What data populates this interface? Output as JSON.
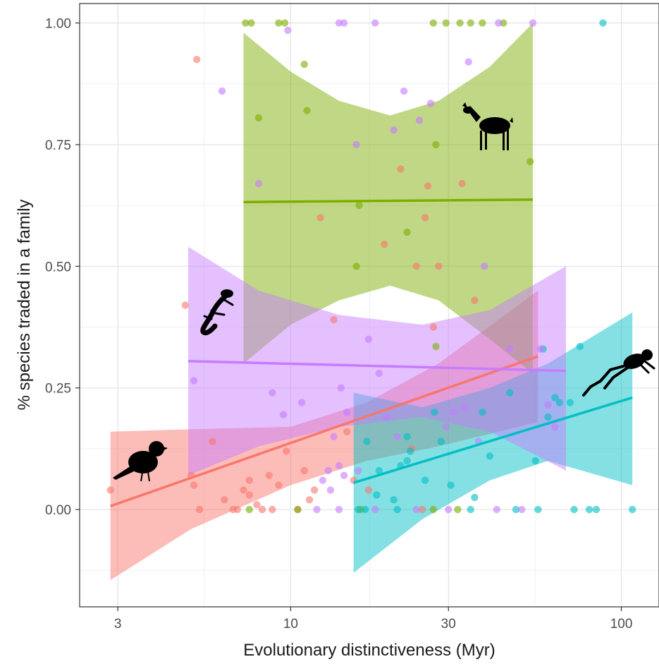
{
  "chart_data": {
    "type": "scatter",
    "title": "",
    "xlabel": "Evolutionary distinctiveness (Myr)",
    "ylabel": "% species traded in a family",
    "x_scale": "log10",
    "xlim": [
      2.3,
      130
    ],
    "ylim": [
      -0.2,
      1.04
    ],
    "x_ticks": [
      3,
      10,
      30,
      100
    ],
    "x_tick_labels": [
      "3",
      "10",
      "30",
      "100"
    ],
    "y_ticks": [
      0.0,
      0.25,
      0.5,
      0.75,
      1.0
    ],
    "y_tick_labels": [
      "0.00",
      "0.25",
      "0.50",
      "0.75",
      "1.00"
    ],
    "grid": true,
    "legend": "none",
    "series": [
      {
        "color": "#F8766D",
        "icon": "bird-silhouette-icon",
        "fit": {
          "x": [
            2.85,
            56
          ],
          "y": [
            0.007,
            0.315
          ]
        },
        "ribbon": {
          "x": [
            2.85,
            5,
            10,
            17,
            28,
            56
          ],
          "lower": [
            -0.145,
            -0.04,
            0.05,
            0.1,
            0.13,
            0.18
          ],
          "upper": [
            0.16,
            0.165,
            0.17,
            0.22,
            0.3,
            0.45
          ]
        },
        "points": [
          [
            2.85,
            0.04
          ],
          [
            4.8,
            0.42
          ],
          [
            5.2,
            0.925
          ],
          [
            5.8,
            0.14
          ],
          [
            5.0,
            0.07
          ],
          [
            5.1,
            0.05
          ],
          [
            5.3,
            0.0
          ],
          [
            6.3,
            0.02
          ],
          [
            6.7,
            0.0
          ],
          [
            6.9,
            0.0
          ],
          [
            7.2,
            0.04
          ],
          [
            7.5,
            0.03
          ],
          [
            7.5,
            0.06
          ],
          [
            7.9,
            0.01
          ],
          [
            8.2,
            0.0
          ],
          [
            8.6,
            0.07
          ],
          [
            8.8,
            0.0
          ],
          [
            9.2,
            0.05
          ],
          [
            9.7,
            0.12
          ],
          [
            10.5,
            0.0
          ],
          [
            11.0,
            0.08
          ],
          [
            11.4,
            0.02
          ],
          [
            11.8,
            0.04
          ],
          [
            12.3,
            0.6
          ],
          [
            13.5,
            0.39
          ],
          [
            14.8,
            0.16
          ],
          [
            15.5,
            0.06
          ],
          [
            17.2,
            0.04
          ],
          [
            19.2,
            0.545
          ],
          [
            21.5,
            0.7
          ],
          [
            23.2,
            0.125
          ],
          [
            25.0,
            0.0
          ],
          [
            25.5,
            0.6
          ],
          [
            26.0,
            0.665
          ],
          [
            27.0,
            0.375
          ],
          [
            28.0,
            0.5
          ],
          [
            33.0,
            0.67
          ],
          [
            36.0,
            0.43
          ],
          [
            24.0,
            0.5
          ]
        ]
      },
      {
        "color": "#7CAE00",
        "icon": "deer-silhouette-icon",
        "fit": {
          "x": [
            7.2,
            54
          ],
          "y": [
            0.632,
            0.637
          ]
        },
        "ribbon": {
          "x": [
            7.2,
            10,
            14,
            20,
            28,
            40,
            54
          ],
          "lower": [
            0.3,
            0.38,
            0.43,
            0.46,
            0.43,
            0.35,
            0.28
          ],
          "upper": [
            0.98,
            0.9,
            0.84,
            0.81,
            0.84,
            0.91,
            1.0
          ]
        },
        "points": [
          [
            7.3,
            1.0
          ],
          [
            7.6,
            1.0
          ],
          [
            8.0,
            0.805
          ],
          [
            9.2,
            1.0
          ],
          [
            9.6,
            1.0
          ],
          [
            11.0,
            0.915
          ],
          [
            11.2,
            0.82
          ],
          [
            15.8,
            0.5
          ],
          [
            16.1,
            0.625
          ],
          [
            22.5,
            0.57
          ],
          [
            27.0,
            1.0
          ],
          [
            27.5,
            0.75
          ],
          [
            29.5,
            1.0
          ],
          [
            32.5,
            1.0
          ],
          [
            35.0,
            1.0
          ],
          [
            38.0,
            1.0
          ],
          [
            44.0,
            1.0
          ],
          [
            53.0,
            0.715
          ],
          [
            7.5,
            0.0
          ],
          [
            10.5,
            0.0
          ],
          [
            16.3,
            0.0
          ],
          [
            27.0,
            0.0
          ],
          [
            32.0,
            0.0
          ],
          [
            27.5,
            0.335
          ]
        ]
      },
      {
        "color": "#00BFC4",
        "icon": "frog-silhouette-icon",
        "fit": {
          "x": [
            15.5,
            108
          ],
          "y": [
            0.055,
            0.23
          ]
        },
        "ribbon": {
          "x": [
            15.5,
            25,
            40,
            60,
            108
          ],
          "lower": [
            -0.13,
            -0.02,
            0.06,
            0.1,
            0.05
          ],
          "upper": [
            0.24,
            0.21,
            0.25,
            0.3,
            0.405
          ]
        },
        "points": [
          [
            16.0,
            0.0
          ],
          [
            17.0,
            0.14
          ],
          [
            18.2,
            0.03
          ],
          [
            18.5,
            0.08
          ],
          [
            20.5,
            0.02
          ],
          [
            21.5,
            0.09
          ],
          [
            22.5,
            0.1
          ],
          [
            22.5,
            0.15
          ],
          [
            23.0,
            0.12
          ],
          [
            25.5,
            0.06
          ],
          [
            27.2,
            0.2
          ],
          [
            28.5,
            0.14
          ],
          [
            30.5,
            0.05
          ],
          [
            38.0,
            0.2
          ],
          [
            40.0,
            0.11
          ],
          [
            36.0,
            0.025
          ],
          [
            46.0,
            0.24
          ],
          [
            55.0,
            0.1
          ],
          [
            58.0,
            0.33
          ],
          [
            60.0,
            0.19
          ],
          [
            63.0,
            0.23
          ],
          [
            65.0,
            0.22
          ],
          [
            70.0,
            0.22
          ],
          [
            75.0,
            0.335
          ],
          [
            88.0,
            1.0
          ],
          [
            108.0,
            0.0
          ],
          [
            16.8,
            0.0
          ],
          [
            21.0,
            0.0
          ],
          [
            35.0,
            0.0
          ],
          [
            48.0,
            0.0
          ],
          [
            56.0,
            0.0
          ],
          [
            72.0,
            0.0
          ],
          [
            80.0,
            0.0
          ],
          [
            84.0,
            0.0
          ]
        ]
      },
      {
        "color": "#C77CFF",
        "icon": "lizard-silhouette-icon",
        "fit": {
          "x": [
            4.9,
            68
          ],
          "y": [
            0.305,
            0.285
          ]
        },
        "ribbon": {
          "x": [
            4.9,
            8,
            14,
            25,
            40,
            68
          ],
          "lower": [
            0.07,
            0.13,
            0.17,
            0.19,
            0.16,
            0.08
          ],
          "upper": [
            0.54,
            0.45,
            0.4,
            0.38,
            0.41,
            0.5
          ]
        },
        "points": [
          [
            6.2,
            0.86
          ],
          [
            8.0,
            0.67
          ],
          [
            9.8,
            0.985
          ],
          [
            14.0,
            1.0
          ],
          [
            14.5,
            1.0
          ],
          [
            15.8,
            0.75
          ],
          [
            18.0,
            1.0
          ],
          [
            20.5,
            0.78
          ],
          [
            22.0,
            0.86
          ],
          [
            24.5,
            0.8
          ],
          [
            26.5,
            0.835
          ],
          [
            34.5,
            0.92
          ],
          [
            38.5,
            0.5
          ],
          [
            42.5,
            1.0
          ],
          [
            54.0,
            1.0
          ],
          [
            5.1,
            0.265
          ],
          [
            8.8,
            0.24
          ],
          [
            9.5,
            0.195
          ],
          [
            10.8,
            0.22
          ],
          [
            13.5,
            0.15
          ],
          [
            14.2,
            0.25
          ],
          [
            14.8,
            0.2
          ],
          [
            16.0,
            0.08
          ],
          [
            17.2,
            0.35
          ],
          [
            18.5,
            0.28
          ],
          [
            19.5,
            0.19
          ],
          [
            21.0,
            0.15
          ],
          [
            12.5,
            0.06
          ],
          [
            13.0,
            0.08
          ],
          [
            14.0,
            0.09
          ],
          [
            14.5,
            0.07
          ],
          [
            13.2,
            0.04
          ],
          [
            29.5,
            0.17
          ],
          [
            31.0,
            0.2
          ],
          [
            33.5,
            0.21
          ],
          [
            37.0,
            0.14
          ],
          [
            46.0,
            0.33
          ],
          [
            60.0,
            0.215
          ],
          [
            63.0,
            0.17
          ],
          [
            57.0,
            0.33
          ],
          [
            12.0,
            0.0
          ],
          [
            14.0,
            0.0
          ],
          [
            18.0,
            0.0
          ],
          [
            24.0,
            0.0
          ],
          [
            30.0,
            0.0
          ],
          [
            42.0,
            0.0
          ],
          [
            50.0,
            0.0
          ]
        ]
      }
    ]
  }
}
